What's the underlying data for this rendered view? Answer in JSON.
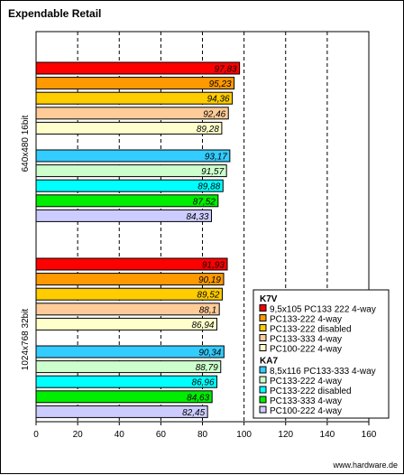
{
  "chart_data": {
    "type": "bar",
    "orientation": "horizontal",
    "title": "Expendable Retail",
    "footer": "www.hardware.de",
    "xlim": [
      0,
      160
    ],
    "xticks": [
      "0",
      "20",
      "40",
      "60",
      "80",
      "100",
      "120",
      "140",
      "160"
    ],
    "grid": true,
    "legend_position": "bottom-right",
    "groups": [
      {
        "label": "640x480 16bit",
        "subgroups": [
          {
            "name": "K7V",
            "bars": [
              {
                "label": "9,5x105 PC133 222 4-way",
                "value": 97.83,
                "display": "97,83",
                "color": "#ff0000"
              },
              {
                "label": "PC133-222 4-way",
                "value": 95.23,
                "display": "95,23",
                "color": "#ff9900"
              },
              {
                "label": "PC133-222 disabled",
                "value": 94.36,
                "display": "94,36",
                "color": "#ffcc00"
              },
              {
                "label": "PC133-333 4-way",
                "value": 92.46,
                "display": "92,46",
                "color": "#ffcc99"
              },
              {
                "label": "PC100-222 4-way",
                "value": 89.28,
                "display": "89,28",
                "color": "#ffffcc"
              }
            ]
          },
          {
            "name": "KA7",
            "bars": [
              {
                "label": "8,5x116 PC133-333 4-way",
                "value": 93.17,
                "display": "93,17",
                "color": "#33ccff"
              },
              {
                "label": "PC133-222 4-way",
                "value": 91.57,
                "display": "91,57",
                "color": "#ccffcc"
              },
              {
                "label": "PC133-222 disabled",
                "value": 89.88,
                "display": "89,88",
                "color": "#00ffff"
              },
              {
                "label": "PC133-333 4-way",
                "value": 87.52,
                "display": "87,52",
                "color": "#00ee00"
              },
              {
                "label": "PC100-222 4-way",
                "value": 84.33,
                "display": "84,33",
                "color": "#ccccff"
              }
            ]
          }
        ]
      },
      {
        "label": "1024x768 32bit",
        "subgroups": [
          {
            "name": "K7V",
            "bars": [
              {
                "label": "9,5x105 PC133 222 4-way",
                "value": 91.93,
                "display": "91,93",
                "color": "#ff0000"
              },
              {
                "label": "PC133-222 4-way",
                "value": 90.19,
                "display": "90,19",
                "color": "#ff9900"
              },
              {
                "label": "PC133-222 disabled",
                "value": 89.52,
                "display": "89,52",
                "color": "#ffcc00"
              },
              {
                "label": "PC133-333 4-way",
                "value": 88.1,
                "display": "88,1",
                "color": "#ffcc99"
              },
              {
                "label": "PC100-222 4-way",
                "value": 86.94,
                "display": "86,94",
                "color": "#ffffcc"
              }
            ]
          },
          {
            "name": "KA7",
            "bars": [
              {
                "label": "8,5x116 PC133-333 4-way",
                "value": 90.34,
                "display": "90,34",
                "color": "#33ccff"
              },
              {
                "label": "PC133-222 4-way",
                "value": 88.79,
                "display": "88,79",
                "color": "#ccffcc"
              },
              {
                "label": "PC133-222 disabled",
                "value": 86.96,
                "display": "86,96",
                "color": "#00ffff"
              },
              {
                "label": "PC133-333 4-way",
                "value": 84.63,
                "display": "84,63",
                "color": "#00ee00"
              },
              {
                "label": "PC100-222 4-way",
                "value": 82.45,
                "display": "82,45",
                "color": "#ccccff"
              }
            ]
          }
        ]
      }
    ],
    "legend": [
      {
        "heading": "K7V",
        "items": [
          {
            "label": "9,5x105 PC133 222 4-way",
            "color": "#ff0000"
          },
          {
            "label": "PC133-222 4-way",
            "color": "#ff9900"
          },
          {
            "label": "PC133-222 disabled",
            "color": "#ffcc00"
          },
          {
            "label": "PC133-333 4-way",
            "color": "#ffcc99"
          },
          {
            "label": "PC100-222 4-way",
            "color": "#ffffcc"
          }
        ]
      },
      {
        "heading": "KA7",
        "items": [
          {
            "label": "8,5x116 PC133-333 4-way",
            "color": "#33ccff"
          },
          {
            "label": "PC133-222 4-way",
            "color": "#ccffcc"
          },
          {
            "label": "PC133-222 disabled",
            "color": "#00ffff"
          },
          {
            "label": "PC133-333 4-way",
            "color": "#00ee00"
          },
          {
            "label": "PC100-222 4-way",
            "color": "#ccccff"
          }
        ]
      }
    ]
  }
}
